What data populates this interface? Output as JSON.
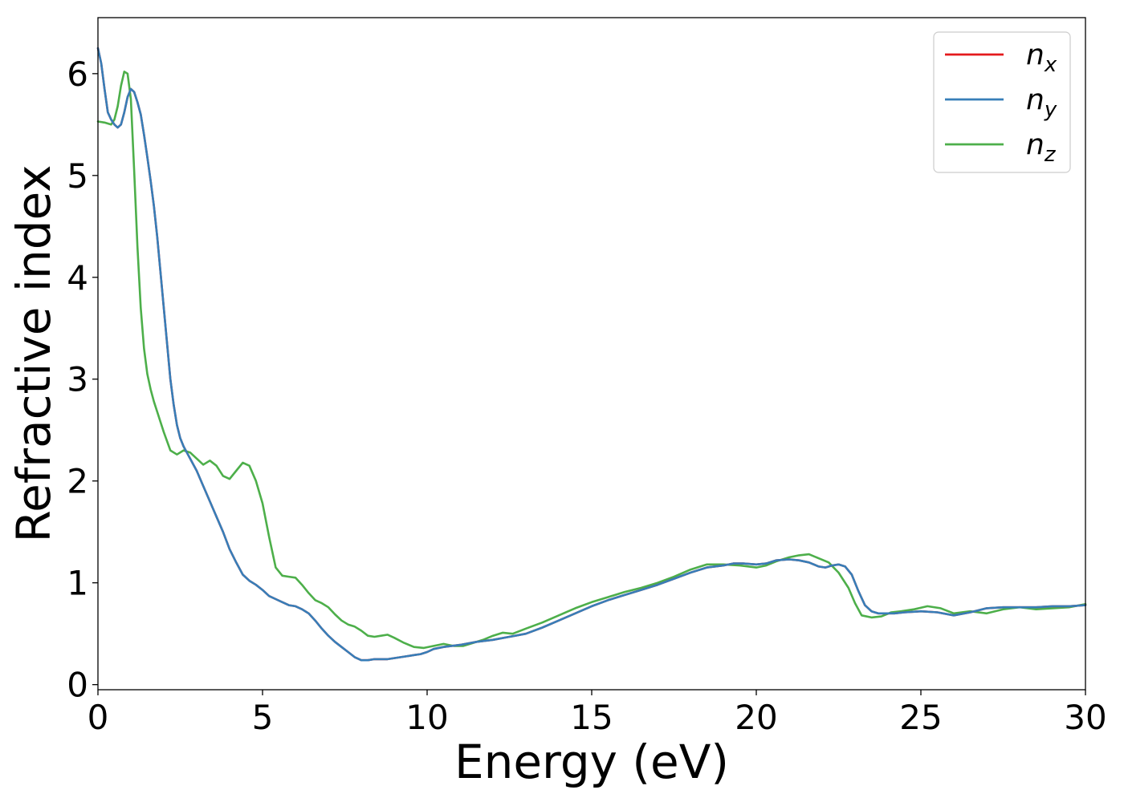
{
  "chart_data": {
    "type": "line",
    "title": "",
    "xlabel": "Energy (eV)",
    "ylabel": "Refractive index",
    "xlim": [
      0,
      30
    ],
    "ylim": [
      -0.05,
      6.55
    ],
    "xticks": [
      0,
      5,
      10,
      15,
      20,
      25,
      30
    ],
    "yticks": [
      0,
      1,
      2,
      3,
      4,
      5,
      6
    ],
    "xtick_labels": [
      "0",
      "5",
      "10",
      "15",
      "20",
      "25",
      "30"
    ],
    "ytick_labels": [
      "0",
      "1",
      "2",
      "3",
      "4",
      "5",
      "6"
    ],
    "grid": false,
    "legend_position": "top-right",
    "series": [
      {
        "name": "n_x",
        "label_base": "n",
        "label_sub": "x",
        "color": "#e41a1c",
        "x": [
          0,
          0.1,
          0.2,
          0.3,
          0.4,
          0.5,
          0.6,
          0.7,
          0.8,
          0.9,
          1.0,
          1.1,
          1.2,
          1.3,
          1.4,
          1.5,
          1.6,
          1.7,
          1.8,
          1.9,
          2.0,
          2.1,
          2.2,
          2.3,
          2.4,
          2.5,
          2.6,
          2.7,
          2.8,
          3.0,
          3.2,
          3.4,
          3.6,
          3.8,
          4.0,
          4.2,
          4.4,
          4.6,
          4.8,
          5.0,
          5.2,
          5.4,
          5.6,
          5.8,
          6.0,
          6.2,
          6.4,
          6.6,
          6.8,
          7.0,
          7.2,
          7.4,
          7.6,
          7.8,
          8.0,
          8.2,
          8.4,
          8.6,
          8.8,
          9.0,
          9.2,
          9.4,
          9.6,
          9.8,
          10.0,
          10.2,
          10.5,
          11.0,
          11.5,
          12.0,
          12.5,
          13.0,
          13.5,
          14.0,
          14.5,
          15.0,
          15.5,
          16.0,
          16.5,
          17.0,
          17.5,
          18.0,
          18.5,
          19.0,
          19.3,
          19.6,
          20.0,
          20.3,
          20.6,
          21.0,
          21.3,
          21.6,
          21.9,
          22.1,
          22.3,
          22.5,
          22.7,
          22.9,
          23.1,
          23.3,
          23.5,
          23.7,
          23.9,
          24.2,
          24.5,
          25.0,
          25.5,
          26.0,
          26.5,
          27.0,
          27.5,
          28.0,
          28.5,
          29.0,
          29.5,
          30.0
        ],
        "y": [
          6.25,
          6.1,
          5.85,
          5.62,
          5.55,
          5.5,
          5.47,
          5.5,
          5.62,
          5.77,
          5.85,
          5.82,
          5.72,
          5.6,
          5.4,
          5.18,
          4.95,
          4.7,
          4.4,
          4.05,
          3.7,
          3.35,
          3.0,
          2.75,
          2.55,
          2.42,
          2.34,
          2.28,
          2.22,
          2.1,
          1.95,
          1.8,
          1.65,
          1.5,
          1.33,
          1.2,
          1.08,
          1.02,
          0.98,
          0.93,
          0.87,
          0.84,
          0.81,
          0.78,
          0.77,
          0.74,
          0.7,
          0.63,
          0.55,
          0.48,
          0.42,
          0.37,
          0.32,
          0.27,
          0.24,
          0.24,
          0.25,
          0.25,
          0.25,
          0.26,
          0.27,
          0.28,
          0.29,
          0.3,
          0.32,
          0.35,
          0.37,
          0.39,
          0.42,
          0.44,
          0.47,
          0.5,
          0.56,
          0.63,
          0.7,
          0.77,
          0.83,
          0.88,
          0.93,
          0.98,
          1.04,
          1.1,
          1.15,
          1.17,
          1.19,
          1.19,
          1.18,
          1.19,
          1.22,
          1.23,
          1.22,
          1.2,
          1.16,
          1.15,
          1.17,
          1.18,
          1.16,
          1.08,
          0.92,
          0.78,
          0.72,
          0.7,
          0.7,
          0.7,
          0.71,
          0.72,
          0.71,
          0.68,
          0.71,
          0.75,
          0.76,
          0.76,
          0.76,
          0.77,
          0.77,
          0.78
        ]
      },
      {
        "name": "n_y",
        "label_base": "n",
        "label_sub": "y",
        "color": "#377eb8",
        "x": [
          0,
          0.1,
          0.2,
          0.3,
          0.4,
          0.5,
          0.6,
          0.7,
          0.8,
          0.9,
          1.0,
          1.1,
          1.2,
          1.3,
          1.4,
          1.5,
          1.6,
          1.7,
          1.8,
          1.9,
          2.0,
          2.1,
          2.2,
          2.3,
          2.4,
          2.5,
          2.6,
          2.7,
          2.8,
          3.0,
          3.2,
          3.4,
          3.6,
          3.8,
          4.0,
          4.2,
          4.4,
          4.6,
          4.8,
          5.0,
          5.2,
          5.4,
          5.6,
          5.8,
          6.0,
          6.2,
          6.4,
          6.6,
          6.8,
          7.0,
          7.2,
          7.4,
          7.6,
          7.8,
          8.0,
          8.2,
          8.4,
          8.6,
          8.8,
          9.0,
          9.2,
          9.4,
          9.6,
          9.8,
          10.0,
          10.2,
          10.5,
          11.0,
          11.5,
          12.0,
          12.5,
          13.0,
          13.5,
          14.0,
          14.5,
          15.0,
          15.5,
          16.0,
          16.5,
          17.0,
          17.5,
          18.0,
          18.5,
          19.0,
          19.3,
          19.6,
          20.0,
          20.3,
          20.6,
          21.0,
          21.3,
          21.6,
          21.9,
          22.1,
          22.3,
          22.5,
          22.7,
          22.9,
          23.1,
          23.3,
          23.5,
          23.7,
          23.9,
          24.2,
          24.5,
          25.0,
          25.5,
          26.0,
          26.5,
          27.0,
          27.5,
          28.0,
          28.5,
          29.0,
          29.5,
          30.0
        ],
        "y": [
          6.25,
          6.1,
          5.85,
          5.62,
          5.55,
          5.5,
          5.47,
          5.5,
          5.62,
          5.77,
          5.85,
          5.82,
          5.72,
          5.6,
          5.4,
          5.18,
          4.95,
          4.7,
          4.4,
          4.05,
          3.7,
          3.35,
          3.0,
          2.75,
          2.55,
          2.42,
          2.34,
          2.28,
          2.22,
          2.1,
          1.95,
          1.8,
          1.65,
          1.5,
          1.33,
          1.2,
          1.08,
          1.02,
          0.98,
          0.93,
          0.87,
          0.84,
          0.81,
          0.78,
          0.77,
          0.74,
          0.7,
          0.63,
          0.55,
          0.48,
          0.42,
          0.37,
          0.32,
          0.27,
          0.24,
          0.24,
          0.25,
          0.25,
          0.25,
          0.26,
          0.27,
          0.28,
          0.29,
          0.3,
          0.32,
          0.35,
          0.37,
          0.39,
          0.42,
          0.44,
          0.47,
          0.5,
          0.56,
          0.63,
          0.7,
          0.77,
          0.83,
          0.88,
          0.93,
          0.98,
          1.04,
          1.1,
          1.15,
          1.17,
          1.19,
          1.19,
          1.18,
          1.19,
          1.22,
          1.23,
          1.22,
          1.2,
          1.16,
          1.15,
          1.17,
          1.18,
          1.16,
          1.08,
          0.92,
          0.78,
          0.72,
          0.7,
          0.7,
          0.7,
          0.71,
          0.72,
          0.71,
          0.68,
          0.71,
          0.75,
          0.76,
          0.76,
          0.76,
          0.77,
          0.77,
          0.78
        ]
      },
      {
        "name": "n_z",
        "label_base": "n",
        "label_sub": "z",
        "color": "#4daf4a",
        "x": [
          0,
          0.2,
          0.4,
          0.5,
          0.6,
          0.7,
          0.8,
          0.9,
          1.0,
          1.1,
          1.2,
          1.3,
          1.4,
          1.5,
          1.6,
          1.7,
          1.8,
          1.9,
          2.0,
          2.2,
          2.4,
          2.6,
          2.8,
          3.0,
          3.2,
          3.4,
          3.6,
          3.8,
          4.0,
          4.2,
          4.4,
          4.6,
          4.8,
          5.0,
          5.2,
          5.4,
          5.6,
          5.8,
          6.0,
          6.2,
          6.4,
          6.6,
          6.8,
          7.0,
          7.2,
          7.4,
          7.6,
          7.8,
          8.0,
          8.2,
          8.4,
          8.6,
          8.8,
          9.0,
          9.3,
          9.6,
          9.9,
          10.2,
          10.5,
          10.8,
          11.1,
          11.4,
          11.7,
          12.0,
          12.3,
          12.6,
          13.0,
          13.5,
          14.0,
          14.5,
          15.0,
          15.5,
          16.0,
          16.5,
          17.0,
          17.5,
          18.0,
          18.5,
          19.0,
          19.5,
          20.0,
          20.3,
          20.6,
          21.0,
          21.3,
          21.6,
          21.9,
          22.2,
          22.5,
          22.8,
          23.0,
          23.2,
          23.5,
          23.8,
          24.1,
          24.4,
          24.8,
          25.2,
          25.6,
          26.0,
          26.5,
          27.0,
          27.5,
          28.0,
          28.5,
          29.0,
          29.5,
          30.0
        ],
        "y": [
          5.53,
          5.52,
          5.5,
          5.55,
          5.68,
          5.88,
          6.02,
          6.0,
          5.75,
          5.05,
          4.3,
          3.7,
          3.3,
          3.05,
          2.9,
          2.78,
          2.68,
          2.58,
          2.48,
          2.3,
          2.26,
          2.3,
          2.28,
          2.22,
          2.16,
          2.2,
          2.15,
          2.05,
          2.02,
          2.1,
          2.18,
          2.15,
          2.0,
          1.78,
          1.45,
          1.15,
          1.07,
          1.06,
          1.05,
          0.98,
          0.9,
          0.83,
          0.8,
          0.76,
          0.69,
          0.63,
          0.59,
          0.57,
          0.53,
          0.48,
          0.47,
          0.48,
          0.49,
          0.46,
          0.41,
          0.37,
          0.36,
          0.38,
          0.4,
          0.38,
          0.38,
          0.41,
          0.44,
          0.48,
          0.51,
          0.5,
          0.55,
          0.61,
          0.68,
          0.75,
          0.81,
          0.86,
          0.91,
          0.95,
          1.0,
          1.06,
          1.13,
          1.18,
          1.18,
          1.17,
          1.15,
          1.17,
          1.21,
          1.25,
          1.27,
          1.28,
          1.24,
          1.2,
          1.1,
          0.95,
          0.8,
          0.68,
          0.66,
          0.67,
          0.71,
          0.72,
          0.74,
          0.77,
          0.75,
          0.7,
          0.72,
          0.7,
          0.74,
          0.76,
          0.74,
          0.75,
          0.76,
          0.79
        ]
      }
    ]
  }
}
